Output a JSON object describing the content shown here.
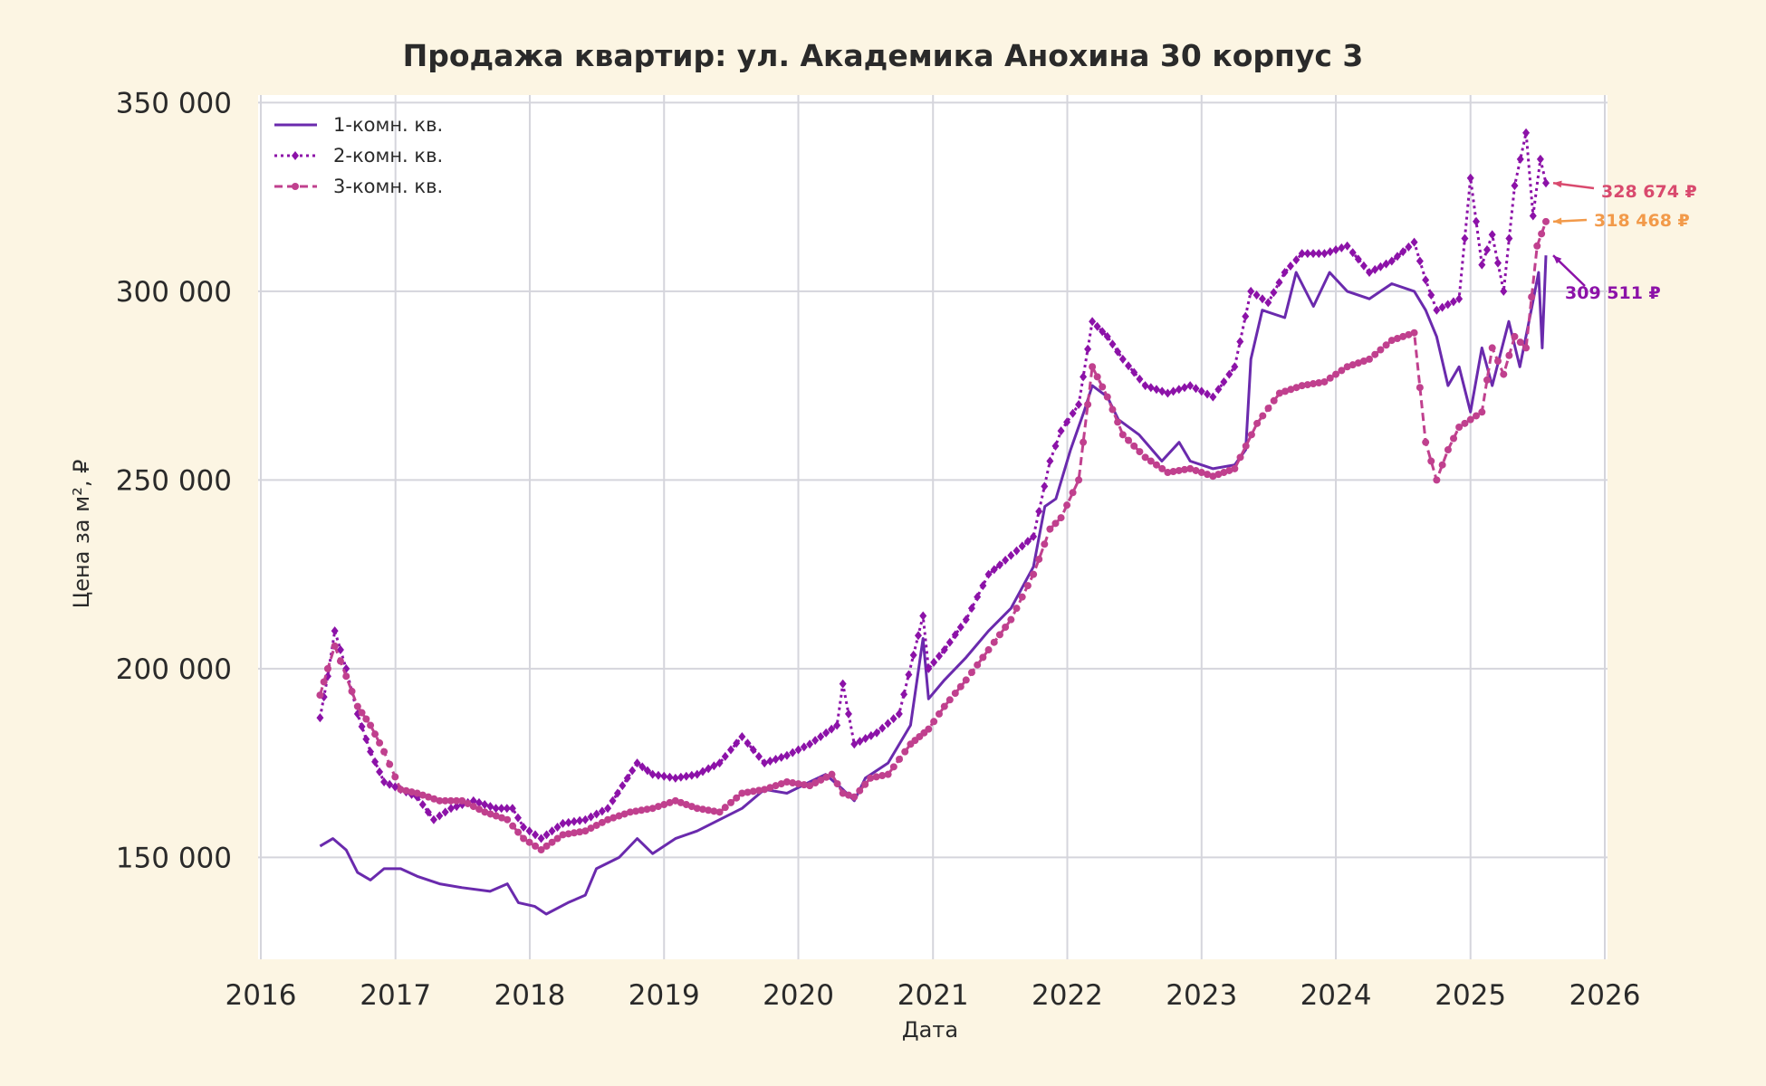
{
  "chart_data": {
    "type": "line",
    "title": "Продажа квартир: ул. Академика Анохина 30 корпус 3",
    "xlabel": "Дата",
    "ylabel": "Цена за м², ₽",
    "xlim": [
      "2016-01-01",
      "2026-01-01"
    ],
    "ylim": [
      123000,
      352000
    ],
    "x_ticks": [
      "2016",
      "2017",
      "2018",
      "2019",
      "2020",
      "2021",
      "2022",
      "2023",
      "2024",
      "2025",
      "2026"
    ],
    "y_ticks": [
      150000,
      200000,
      250000,
      300000,
      350000
    ],
    "y_tick_labels": [
      "150 000",
      "200 000",
      "250 000",
      "300 000",
      "350 000"
    ],
    "grid": true,
    "legend_position": "top-left",
    "series": [
      {
        "name": "1-комн. кв.",
        "color": "#6a2aad",
        "style": "solid",
        "marker": "none",
        "points": [
          [
            "2016-06-10",
            153000
          ],
          [
            "2016-07-15",
            155000
          ],
          [
            "2016-08-20",
            152000
          ],
          [
            "2016-09-20",
            146000
          ],
          [
            "2016-10-25",
            144000
          ],
          [
            "2016-12-01",
            147000
          ],
          [
            "2017-01-15",
            147000
          ],
          [
            "2017-03-01",
            145000
          ],
          [
            "2017-05-01",
            143000
          ],
          [
            "2017-07-01",
            142000
          ],
          [
            "2017-09-15",
            141000
          ],
          [
            "2017-11-01",
            143000
          ],
          [
            "2017-12-01",
            138000
          ],
          [
            "2018-01-15",
            137000
          ],
          [
            "2018-02-15",
            135000
          ],
          [
            "2018-04-15",
            138000
          ],
          [
            "2018-06-01",
            140000
          ],
          [
            "2018-07-01",
            147000
          ],
          [
            "2018-09-01",
            150000
          ],
          [
            "2018-10-20",
            155000
          ],
          [
            "2018-12-01",
            151000
          ],
          [
            "2019-02-01",
            155000
          ],
          [
            "2019-04-01",
            157000
          ],
          [
            "2019-06-01",
            160000
          ],
          [
            "2019-08-01",
            163000
          ],
          [
            "2019-10-01",
            168000
          ],
          [
            "2019-12-01",
            167000
          ],
          [
            "2020-02-01",
            170000
          ],
          [
            "2020-03-15",
            172000
          ],
          [
            "2020-05-01",
            168000
          ],
          [
            "2020-06-01",
            165000
          ],
          [
            "2020-07-01",
            171000
          ],
          [
            "2020-09-01",
            175000
          ],
          [
            "2020-11-01",
            185000
          ],
          [
            "2020-12-05",
            208000
          ],
          [
            "2020-12-20",
            192000
          ],
          [
            "2021-02-01",
            197000
          ],
          [
            "2021-04-01",
            203000
          ],
          [
            "2021-06-01",
            210000
          ],
          [
            "2021-08-01",
            216000
          ],
          [
            "2021-10-01",
            227000
          ],
          [
            "2021-11-01",
            243000
          ],
          [
            "2021-12-01",
            245000
          ],
          [
            "2022-01-10",
            258000
          ],
          [
            "2022-02-15",
            268000
          ],
          [
            "2022-03-10",
            275000
          ],
          [
            "2022-04-20",
            272000
          ],
          [
            "2022-05-20",
            266000
          ],
          [
            "2022-07-15",
            262000
          ],
          [
            "2022-09-15",
            255000
          ],
          [
            "2022-11-01",
            260000
          ],
          [
            "2022-12-01",
            255000
          ],
          [
            "2023-02-01",
            253000
          ],
          [
            "2023-04-01",
            254000
          ],
          [
            "2023-05-01",
            258000
          ],
          [
            "2023-05-15",
            282000
          ],
          [
            "2023-06-15",
            295000
          ],
          [
            "2023-08-15",
            293000
          ],
          [
            "2023-09-15",
            305000
          ],
          [
            "2023-11-01",
            296000
          ],
          [
            "2023-12-15",
            305000
          ],
          [
            "2024-02-01",
            300000
          ],
          [
            "2024-04-01",
            298000
          ],
          [
            "2024-06-01",
            302000
          ],
          [
            "2024-08-01",
            300000
          ],
          [
            "2024-09-01",
            295000
          ],
          [
            "2024-10-01",
            288000
          ],
          [
            "2024-11-01",
            275000
          ],
          [
            "2024-12-01",
            280000
          ],
          [
            "2025-01-01",
            268000
          ],
          [
            "2025-02-01",
            285000
          ],
          [
            "2025-03-01",
            275000
          ],
          [
            "2025-04-15",
            292000
          ],
          [
            "2025-05-15",
            280000
          ],
          [
            "2025-06-15",
            295000
          ],
          [
            "2025-07-05",
            305000
          ],
          [
            "2025-07-15",
            285000
          ],
          [
            "2025-07-25",
            309511
          ]
        ]
      },
      {
        "name": "2-комн. кв.",
        "color": "#8c12a8",
        "style": "dotted",
        "marker": "diamond",
        "points": [
          [
            "2016-06-10",
            187000
          ],
          [
            "2016-07-01",
            198000
          ],
          [
            "2016-07-20",
            210000
          ],
          [
            "2016-08-20",
            200000
          ],
          [
            "2016-09-20",
            188000
          ],
          [
            "2016-10-25",
            178000
          ],
          [
            "2016-12-01",
            170000
          ],
          [
            "2017-01-15",
            168000
          ],
          [
            "2017-03-01",
            166000
          ],
          [
            "2017-04-15",
            160000
          ],
          [
            "2017-06-01",
            163000
          ],
          [
            "2017-08-01",
            165000
          ],
          [
            "2017-10-01",
            163000
          ],
          [
            "2017-11-15",
            163000
          ],
          [
            "2017-12-15",
            158000
          ],
          [
            "2018-02-01",
            155000
          ],
          [
            "2018-04-01",
            159000
          ],
          [
            "2018-06-01",
            160000
          ],
          [
            "2018-08-01",
            163000
          ],
          [
            "2018-10-20",
            175000
          ],
          [
            "2018-12-01",
            172000
          ],
          [
            "2019-02-01",
            171000
          ],
          [
            "2019-04-01",
            172000
          ],
          [
            "2019-06-01",
            175000
          ],
          [
            "2019-08-01",
            182000
          ],
          [
            "2019-10-01",
            175000
          ],
          [
            "2019-12-01",
            177000
          ],
          [
            "2020-02-01",
            180000
          ],
          [
            "2020-04-15",
            185000
          ],
          [
            "2020-05-01",
            196000
          ],
          [
            "2020-06-01",
            180000
          ],
          [
            "2020-08-01",
            183000
          ],
          [
            "2020-10-01",
            188000
          ],
          [
            "2020-12-05",
            214000
          ],
          [
            "2020-12-20",
            200000
          ],
          [
            "2021-02-01",
            205000
          ],
          [
            "2021-04-01",
            213000
          ],
          [
            "2021-06-01",
            225000
          ],
          [
            "2021-08-01",
            230000
          ],
          [
            "2021-10-01",
            235000
          ],
          [
            "2021-11-15",
            255000
          ],
          [
            "2021-12-15",
            263000
          ],
          [
            "2022-02-01",
            270000
          ],
          [
            "2022-03-10",
            292000
          ],
          [
            "2022-04-20",
            288000
          ],
          [
            "2022-06-01",
            282000
          ],
          [
            "2022-08-01",
            275000
          ],
          [
            "2022-10-01",
            273000
          ],
          [
            "2022-12-01",
            275000
          ],
          [
            "2023-02-01",
            272000
          ],
          [
            "2023-04-01",
            280000
          ],
          [
            "2023-05-15",
            300000
          ],
          [
            "2023-07-01",
            297000
          ],
          [
            "2023-08-15",
            305000
          ],
          [
            "2023-10-01",
            310000
          ],
          [
            "2023-12-01",
            310000
          ],
          [
            "2024-02-01",
            312000
          ],
          [
            "2024-04-01",
            305000
          ],
          [
            "2024-06-01",
            308000
          ],
          [
            "2024-08-01",
            313000
          ],
          [
            "2024-09-01",
            303000
          ],
          [
            "2024-10-01",
            295000
          ],
          [
            "2024-12-01",
            298000
          ],
          [
            "2025-01-01",
            330000
          ],
          [
            "2025-02-01",
            307000
          ],
          [
            "2025-03-01",
            315000
          ],
          [
            "2025-04-01",
            300000
          ],
          [
            "2025-05-01",
            328000
          ],
          [
            "2025-06-01",
            342000
          ],
          [
            "2025-06-20",
            320000
          ],
          [
            "2025-07-10",
            335000
          ],
          [
            "2025-07-25",
            328674
          ]
        ]
      },
      {
        "name": "3-комн. кв.",
        "color": "#c0408e",
        "style": "dashed",
        "marker": "circle",
        "points": [
          [
            "2016-06-10",
            193000
          ],
          [
            "2016-07-01",
            200000
          ],
          [
            "2016-07-20",
            206000
          ],
          [
            "2016-08-20",
            198000
          ],
          [
            "2016-09-20",
            190000
          ],
          [
            "2016-10-25",
            185000
          ],
          [
            "2016-12-01",
            178000
          ],
          [
            "2017-01-15",
            168000
          ],
          [
            "2017-03-01",
            167000
          ],
          [
            "2017-05-01",
            165000
          ],
          [
            "2017-07-01",
            165000
          ],
          [
            "2017-09-01",
            162000
          ],
          [
            "2017-11-01",
            160000
          ],
          [
            "2017-12-15",
            155000
          ],
          [
            "2018-02-01",
            152000
          ],
          [
            "2018-04-01",
            156000
          ],
          [
            "2018-06-01",
            157000
          ],
          [
            "2018-08-01",
            160000
          ],
          [
            "2018-10-01",
            162000
          ],
          [
            "2018-12-01",
            163000
          ],
          [
            "2019-02-01",
            165000
          ],
          [
            "2019-04-01",
            163000
          ],
          [
            "2019-06-01",
            162000
          ],
          [
            "2019-08-01",
            167000
          ],
          [
            "2019-10-01",
            168000
          ],
          [
            "2019-12-01",
            170000
          ],
          [
            "2020-02-01",
            169000
          ],
          [
            "2020-04-01",
            172000
          ],
          [
            "2020-05-01",
            167000
          ],
          [
            "2020-06-01",
            166000
          ],
          [
            "2020-07-15",
            171000
          ],
          [
            "2020-09-01",
            172000
          ],
          [
            "2020-11-01",
            180000
          ],
          [
            "2020-12-20",
            184000
          ],
          [
            "2021-02-01",
            190000
          ],
          [
            "2021-04-01",
            197000
          ],
          [
            "2021-06-01",
            205000
          ],
          [
            "2021-08-01",
            213000
          ],
          [
            "2021-10-01",
            225000
          ],
          [
            "2021-11-15",
            237000
          ],
          [
            "2021-12-15",
            240000
          ],
          [
            "2022-02-01",
            250000
          ],
          [
            "2022-03-10",
            280000
          ],
          [
            "2022-04-20",
            272000
          ],
          [
            "2022-06-01",
            262000
          ],
          [
            "2022-08-01",
            256000
          ],
          [
            "2022-10-01",
            252000
          ],
          [
            "2022-12-01",
            253000
          ],
          [
            "2023-02-01",
            251000
          ],
          [
            "2023-04-01",
            253000
          ],
          [
            "2023-06-01",
            265000
          ],
          [
            "2023-08-01",
            273000
          ],
          [
            "2023-10-01",
            275000
          ],
          [
            "2023-12-01",
            276000
          ],
          [
            "2024-02-01",
            280000
          ],
          [
            "2024-04-01",
            282000
          ],
          [
            "2024-06-01",
            287000
          ],
          [
            "2024-08-01",
            289000
          ],
          [
            "2024-09-01",
            260000
          ],
          [
            "2024-10-01",
            250000
          ],
          [
            "2024-11-01",
            258000
          ],
          [
            "2024-12-01",
            264000
          ],
          [
            "2025-02-01",
            268000
          ],
          [
            "2025-03-01",
            285000
          ],
          [
            "2025-04-01",
            278000
          ],
          [
            "2025-05-01",
            288000
          ],
          [
            "2025-06-01",
            285000
          ],
          [
            "2025-07-01",
            312000
          ],
          [
            "2025-07-25",
            318468
          ]
        ]
      }
    ],
    "annotations": [
      {
        "text": "328 674 ₽",
        "color": "#d94a6e"
      },
      {
        "text": "318 468 ₽",
        "color": "#f29a4a"
      },
      {
        "text": "309 511 ₽",
        "color": "#8c12a8"
      }
    ]
  }
}
